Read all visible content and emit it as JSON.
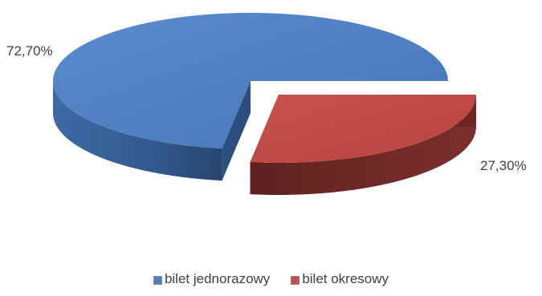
{
  "chart_data": {
    "type": "pie",
    "title": "",
    "slices": [
      {
        "label": "bilet jednorazowy",
        "value": 72.7,
        "display": "72,70%",
        "color": "#4f81bd"
      },
      {
        "label": "bilet okresowy",
        "value": 27.3,
        "display": "27,30%",
        "color": "#c0504d"
      }
    ],
    "legend_position": "bottom",
    "exploded_slice": "bilet okresowy",
    "style": "3d"
  }
}
